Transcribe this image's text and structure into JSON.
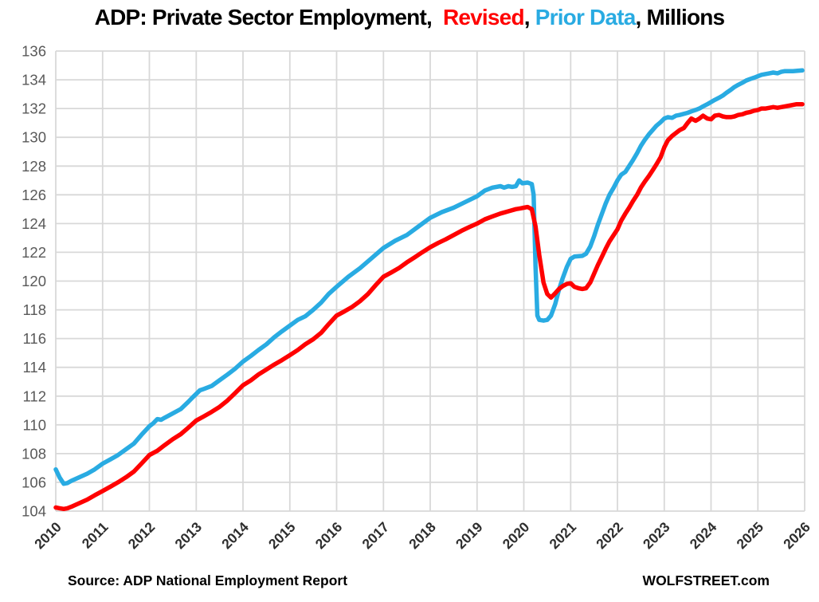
{
  "title": {
    "segments": [
      {
        "text": "ADP: Private Sector Employment,  ",
        "color": "#000000"
      },
      {
        "text": "Revised",
        "color": "#FF0000"
      },
      {
        "text": ", ",
        "color": "#000000"
      },
      {
        "text": "Prior Data",
        "color": "#29ABE2"
      },
      {
        "text": ", Millions",
        "color": "#000000"
      }
    ]
  },
  "footer": {
    "source": "Source: ADP National Employment Report",
    "brand": "WOLFSTREET.com"
  },
  "colors": {
    "revised_red": "#FF0000",
    "prior_blue": "#29ABE2",
    "grid": "#D8D8D8",
    "axis_y_label": "#595959",
    "axis_x_label": "#2E2E2E",
    "background": "#FFFFFF"
  },
  "chart_data": {
    "type": "line",
    "title": "ADP: Private Sector Employment, Revised, Prior Data, Millions",
    "xlabel": "",
    "ylabel": "",
    "grid": true,
    "legend_position": "in-title",
    "xlim": [
      2010,
      2026
    ],
    "ylim": [
      104,
      136
    ],
    "x_ticks": [
      2010,
      2011,
      2012,
      2013,
      2014,
      2015,
      2016,
      2017,
      2018,
      2019,
      2020,
      2021,
      2022,
      2023,
      2024,
      2025,
      2026
    ],
    "y_ticks": [
      104,
      106,
      108,
      110,
      112,
      114,
      116,
      118,
      120,
      122,
      124,
      126,
      128,
      130,
      132,
      134,
      136
    ],
    "series": [
      {
        "name": "Prior Data",
        "color": "#29ABE2",
        "points": [
          [
            2010.0,
            106.9
          ],
          [
            2010.08,
            106.35
          ],
          [
            2010.17,
            105.9
          ],
          [
            2010.25,
            105.95
          ],
          [
            2010.33,
            106.1
          ],
          [
            2010.5,
            106.35
          ],
          [
            2010.67,
            106.6
          ],
          [
            2010.83,
            106.9
          ],
          [
            2011.0,
            107.3
          ],
          [
            2011.17,
            107.6
          ],
          [
            2011.33,
            107.9
          ],
          [
            2011.5,
            108.3
          ],
          [
            2011.67,
            108.7
          ],
          [
            2011.83,
            109.3
          ],
          [
            2012.0,
            109.9
          ],
          [
            2012.08,
            110.1
          ],
          [
            2012.17,
            110.4
          ],
          [
            2012.25,
            110.35
          ],
          [
            2012.33,
            110.5
          ],
          [
            2012.5,
            110.8
          ],
          [
            2012.67,
            111.1
          ],
          [
            2012.83,
            111.6
          ],
          [
            2012.92,
            111.9
          ],
          [
            2013.0,
            112.15
          ],
          [
            2013.08,
            112.4
          ],
          [
            2013.17,
            112.5
          ],
          [
            2013.33,
            112.7
          ],
          [
            2013.5,
            113.1
          ],
          [
            2013.67,
            113.5
          ],
          [
            2013.83,
            113.9
          ],
          [
            2014.0,
            114.4
          ],
          [
            2014.17,
            114.8
          ],
          [
            2014.33,
            115.2
          ],
          [
            2014.5,
            115.6
          ],
          [
            2014.67,
            116.1
          ],
          [
            2014.83,
            116.5
          ],
          [
            2015.0,
            116.9
          ],
          [
            2015.17,
            117.3
          ],
          [
            2015.33,
            117.55
          ],
          [
            2015.5,
            118.0
          ],
          [
            2015.67,
            118.5
          ],
          [
            2015.83,
            119.1
          ],
          [
            2016.0,
            119.6
          ],
          [
            2016.25,
            120.3
          ],
          [
            2016.5,
            120.9
          ],
          [
            2016.75,
            121.6
          ],
          [
            2017.0,
            122.3
          ],
          [
            2017.25,
            122.8
          ],
          [
            2017.5,
            123.2
          ],
          [
            2017.75,
            123.8
          ],
          [
            2018.0,
            124.4
          ],
          [
            2018.25,
            124.8
          ],
          [
            2018.5,
            125.1
          ],
          [
            2018.75,
            125.5
          ],
          [
            2019.0,
            125.9
          ],
          [
            2019.17,
            126.3
          ],
          [
            2019.33,
            126.5
          ],
          [
            2019.5,
            126.6
          ],
          [
            2019.58,
            126.5
          ],
          [
            2019.67,
            126.6
          ],
          [
            2019.75,
            126.55
          ],
          [
            2019.83,
            126.6
          ],
          [
            2019.9,
            127.0
          ],
          [
            2019.97,
            126.8
          ],
          [
            2020.08,
            126.85
          ],
          [
            2020.17,
            126.75
          ],
          [
            2020.21,
            126.0
          ],
          [
            2020.25,
            121.0
          ],
          [
            2020.29,
            117.6
          ],
          [
            2020.33,
            117.3
          ],
          [
            2020.42,
            117.25
          ],
          [
            2020.5,
            117.3
          ],
          [
            2020.58,
            117.6
          ],
          [
            2020.67,
            118.4
          ],
          [
            2020.75,
            119.4
          ],
          [
            2020.83,
            120.2
          ],
          [
            2020.92,
            121.0
          ],
          [
            2021.0,
            121.55
          ],
          [
            2021.08,
            121.7
          ],
          [
            2021.25,
            121.75
          ],
          [
            2021.33,
            121.9
          ],
          [
            2021.42,
            122.4
          ],
          [
            2021.5,
            123.1
          ],
          [
            2021.58,
            123.9
          ],
          [
            2021.67,
            124.7
          ],
          [
            2021.75,
            125.4
          ],
          [
            2021.83,
            126.0
          ],
          [
            2021.92,
            126.5
          ],
          [
            2022.0,
            127.0
          ],
          [
            2022.08,
            127.4
          ],
          [
            2022.17,
            127.6
          ],
          [
            2022.25,
            128.0
          ],
          [
            2022.33,
            128.4
          ],
          [
            2022.42,
            128.9
          ],
          [
            2022.5,
            129.4
          ],
          [
            2022.58,
            129.8
          ],
          [
            2022.67,
            130.2
          ],
          [
            2022.75,
            130.5
          ],
          [
            2022.83,
            130.8
          ],
          [
            2022.92,
            131.05
          ],
          [
            2023.0,
            131.3
          ],
          [
            2023.08,
            131.4
          ],
          [
            2023.17,
            131.35
          ],
          [
            2023.25,
            131.5
          ],
          [
            2023.33,
            131.55
          ],
          [
            2023.5,
            131.7
          ],
          [
            2023.58,
            131.8
          ],
          [
            2023.67,
            131.9
          ],
          [
            2023.75,
            132.0
          ],
          [
            2023.83,
            132.15
          ],
          [
            2023.92,
            132.3
          ],
          [
            2024.0,
            132.45
          ],
          [
            2024.08,
            132.6
          ],
          [
            2024.17,
            132.75
          ],
          [
            2024.25,
            132.9
          ],
          [
            2024.33,
            133.1
          ],
          [
            2024.42,
            133.3
          ],
          [
            2024.5,
            133.5
          ],
          [
            2024.58,
            133.65
          ],
          [
            2024.67,
            133.8
          ],
          [
            2024.75,
            133.95
          ],
          [
            2024.83,
            134.05
          ],
          [
            2024.92,
            134.15
          ],
          [
            2025.0,
            134.25
          ],
          [
            2025.08,
            134.35
          ],
          [
            2025.17,
            134.4
          ],
          [
            2025.25,
            134.45
          ],
          [
            2025.33,
            134.5
          ],
          [
            2025.42,
            134.45
          ],
          [
            2025.5,
            134.55
          ],
          [
            2025.58,
            134.6
          ],
          [
            2025.75,
            134.6
          ],
          [
            2025.95,
            134.65
          ]
        ]
      },
      {
        "name": "Revised",
        "color": "#FF0000",
        "points": [
          [
            2010.0,
            104.25
          ],
          [
            2010.08,
            104.2
          ],
          [
            2010.17,
            104.15
          ],
          [
            2010.25,
            104.2
          ],
          [
            2010.33,
            104.3
          ],
          [
            2010.5,
            104.55
          ],
          [
            2010.67,
            104.8
          ],
          [
            2010.83,
            105.1
          ],
          [
            2011.0,
            105.4
          ],
          [
            2011.17,
            105.7
          ],
          [
            2011.33,
            106.0
          ],
          [
            2011.5,
            106.35
          ],
          [
            2011.67,
            106.75
          ],
          [
            2011.83,
            107.3
          ],
          [
            2012.0,
            107.9
          ],
          [
            2012.17,
            108.2
          ],
          [
            2012.33,
            108.6
          ],
          [
            2012.5,
            109.0
          ],
          [
            2012.67,
            109.35
          ],
          [
            2012.83,
            109.8
          ],
          [
            2013.0,
            110.3
          ],
          [
            2013.17,
            110.6
          ],
          [
            2013.33,
            110.9
          ],
          [
            2013.5,
            111.25
          ],
          [
            2013.67,
            111.7
          ],
          [
            2013.83,
            112.2
          ],
          [
            2014.0,
            112.75
          ],
          [
            2014.17,
            113.1
          ],
          [
            2014.33,
            113.5
          ],
          [
            2014.5,
            113.85
          ],
          [
            2014.67,
            114.2
          ],
          [
            2014.83,
            114.5
          ],
          [
            2015.0,
            114.85
          ],
          [
            2015.17,
            115.2
          ],
          [
            2015.33,
            115.6
          ],
          [
            2015.5,
            115.95
          ],
          [
            2015.67,
            116.4
          ],
          [
            2015.83,
            117.0
          ],
          [
            2016.0,
            117.6
          ],
          [
            2016.17,
            117.9
          ],
          [
            2016.33,
            118.2
          ],
          [
            2016.5,
            118.6
          ],
          [
            2016.67,
            119.1
          ],
          [
            2016.83,
            119.7
          ],
          [
            2017.0,
            120.3
          ],
          [
            2017.17,
            120.6
          ],
          [
            2017.33,
            120.9
          ],
          [
            2017.5,
            121.3
          ],
          [
            2017.67,
            121.65
          ],
          [
            2017.83,
            122.0
          ],
          [
            2018.0,
            122.35
          ],
          [
            2018.17,
            122.65
          ],
          [
            2018.33,
            122.9
          ],
          [
            2018.5,
            123.2
          ],
          [
            2018.67,
            123.5
          ],
          [
            2018.83,
            123.75
          ],
          [
            2019.0,
            124.0
          ],
          [
            2019.17,
            124.3
          ],
          [
            2019.33,
            124.5
          ],
          [
            2019.5,
            124.7
          ],
          [
            2019.67,
            124.85
          ],
          [
            2019.83,
            125.0
          ],
          [
            2019.92,
            125.05
          ],
          [
            2020.0,
            125.1
          ],
          [
            2020.08,
            125.15
          ],
          [
            2020.17,
            125.0
          ],
          [
            2020.25,
            123.8
          ],
          [
            2020.33,
            121.8
          ],
          [
            2020.42,
            119.9
          ],
          [
            2020.5,
            119.1
          ],
          [
            2020.58,
            118.85
          ],
          [
            2020.67,
            119.15
          ],
          [
            2020.75,
            119.45
          ],
          [
            2020.83,
            119.65
          ],
          [
            2020.92,
            119.8
          ],
          [
            2021.0,
            119.85
          ],
          [
            2021.08,
            119.6
          ],
          [
            2021.17,
            119.5
          ],
          [
            2021.25,
            119.45
          ],
          [
            2021.33,
            119.5
          ],
          [
            2021.42,
            119.9
          ],
          [
            2021.5,
            120.5
          ],
          [
            2021.58,
            121.1
          ],
          [
            2021.67,
            121.7
          ],
          [
            2021.75,
            122.25
          ],
          [
            2021.83,
            122.75
          ],
          [
            2021.92,
            123.2
          ],
          [
            2022.0,
            123.6
          ],
          [
            2022.08,
            124.2
          ],
          [
            2022.17,
            124.7
          ],
          [
            2022.25,
            125.1
          ],
          [
            2022.33,
            125.55
          ],
          [
            2022.42,
            126.0
          ],
          [
            2022.5,
            126.5
          ],
          [
            2022.58,
            126.9
          ],
          [
            2022.67,
            127.3
          ],
          [
            2022.75,
            127.7
          ],
          [
            2022.83,
            128.1
          ],
          [
            2022.92,
            128.6
          ],
          [
            2023.0,
            129.3
          ],
          [
            2023.08,
            129.8
          ],
          [
            2023.17,
            130.1
          ],
          [
            2023.25,
            130.3
          ],
          [
            2023.33,
            130.5
          ],
          [
            2023.42,
            130.65
          ],
          [
            2023.5,
            131.0
          ],
          [
            2023.58,
            131.3
          ],
          [
            2023.67,
            131.15
          ],
          [
            2023.75,
            131.3
          ],
          [
            2023.83,
            131.5
          ],
          [
            2023.92,
            131.3
          ],
          [
            2024.0,
            131.25
          ],
          [
            2024.08,
            131.5
          ],
          [
            2024.17,
            131.55
          ],
          [
            2024.25,
            131.45
          ],
          [
            2024.33,
            131.4
          ],
          [
            2024.42,
            131.4
          ],
          [
            2024.5,
            131.45
          ],
          [
            2024.58,
            131.55
          ],
          [
            2024.67,
            131.6
          ],
          [
            2024.75,
            131.7
          ],
          [
            2024.83,
            131.75
          ],
          [
            2024.92,
            131.85
          ],
          [
            2025.0,
            131.9
          ],
          [
            2025.08,
            132.0
          ],
          [
            2025.17,
            132.0
          ],
          [
            2025.25,
            132.05
          ],
          [
            2025.33,
            132.1
          ],
          [
            2025.42,
            132.05
          ],
          [
            2025.5,
            132.1
          ],
          [
            2025.58,
            132.15
          ],
          [
            2025.67,
            132.2
          ],
          [
            2025.75,
            132.25
          ],
          [
            2025.83,
            132.3
          ],
          [
            2025.95,
            132.3
          ]
        ]
      }
    ]
  }
}
